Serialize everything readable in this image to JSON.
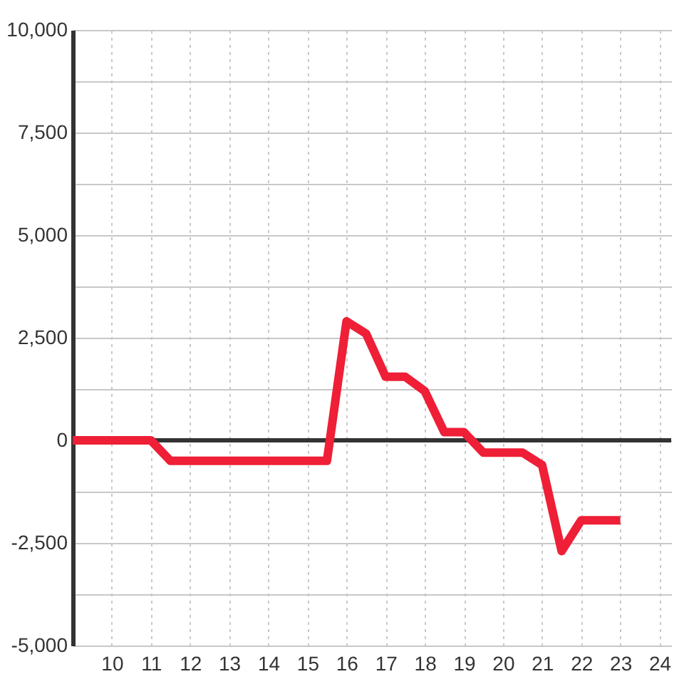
{
  "chart_data": {
    "type": "line",
    "x": [
      9,
      11,
      11.5,
      15.5,
      16,
      16.5,
      17,
      17.5,
      18,
      18.5,
      19,
      19.5,
      20.5,
      21,
      21.5,
      22,
      23
    ],
    "series": [
      {
        "color": "#ee1f36",
        "values": [
          0,
          0,
          -500,
          -500,
          2900,
          2600,
          1550,
          1550,
          1200,
          200,
          200,
          -300,
          -300,
          -600,
          -2700,
          -1950,
          -1950
        ]
      }
    ],
    "xlim": [
      9,
      24.3
    ],
    "ylim": [
      -5000,
      10000
    ],
    "xticks": [
      10,
      11,
      12,
      13,
      14,
      15,
      16,
      17,
      18,
      19,
      20,
      21,
      22,
      23,
      24
    ],
    "yticks": [
      {
        "value": -5000,
        "label": "-5,000"
      },
      {
        "value": -3750,
        "label": null
      },
      {
        "value": -2500,
        "label": "-2,500"
      },
      {
        "value": -1250,
        "label": null
      },
      0,
      {
        "value": 1250,
        "label": null
      },
      {
        "value": 2500,
        "label": "2,500"
      },
      {
        "value": 3750,
        "label": null
      },
      {
        "value": 5000,
        "label": "5,000"
      },
      {
        "value": 6250,
        "label": null
      },
      {
        "value": 7500,
        "label": "7,500"
      },
      {
        "value": 8750,
        "label": null
      },
      {
        "value": 10000,
        "label": "10,000"
      }
    ],
    "grid": true,
    "ref_lines": [
      {
        "axis": "y",
        "value": 0,
        "color": "#333333"
      }
    ]
  }
}
